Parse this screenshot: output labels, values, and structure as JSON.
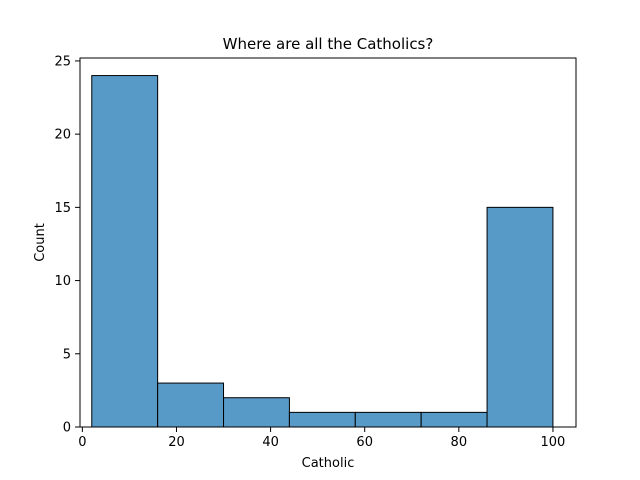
{
  "chart_data": {
    "type": "bar",
    "title": "Where are all the Catholics?",
    "xlabel": "Catholic",
    "ylabel": "Count",
    "xlim": [
      -0.5,
      104.9
    ],
    "ylim": [
      0,
      25.2
    ],
    "xticks": [
      0,
      20,
      40,
      60,
      80,
      100
    ],
    "yticks": [
      0,
      5,
      10,
      15,
      20,
      25
    ],
    "grid": false,
    "bins": [
      {
        "start": 2.0,
        "end": 16.0,
        "count": 24
      },
      {
        "start": 16.0,
        "end": 30.0,
        "count": 3
      },
      {
        "start": 30.0,
        "end": 44.0,
        "count": 2
      },
      {
        "start": 44.0,
        "end": 58.0,
        "count": 1
      },
      {
        "start": 58.0,
        "end": 72.0,
        "count": 1
      },
      {
        "start": 72.0,
        "end": 86.0,
        "count": 1
      },
      {
        "start": 86.0,
        "end": 100.0,
        "count": 15
      }
    ],
    "colors": {
      "bar_fill": "#5799c7",
      "bar_edge": "#000000"
    }
  }
}
